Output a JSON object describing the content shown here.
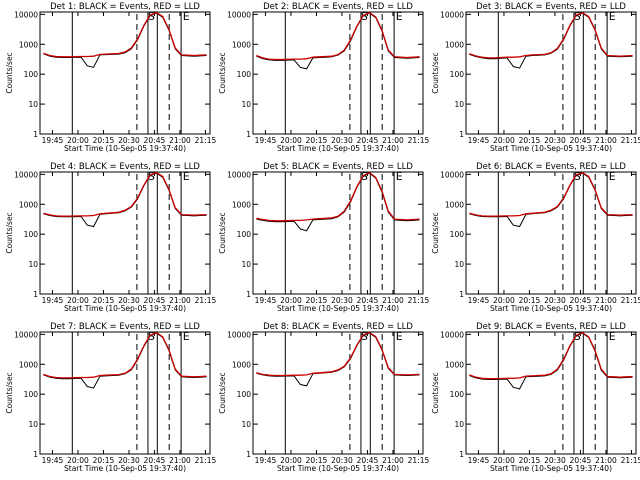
{
  "chart_data": [
    {
      "type": "line",
      "title": "Det 1: BLACK = Events, RED = LLD",
      "xlabel": "Start Time (10-Sep-05 19:37:40)",
      "ylabel": "Counts/sec",
      "x_ticks": [
        "19:45",
        "20:00",
        "20:15",
        "20:30",
        "20:45",
        "21:00",
        "21:15"
      ],
      "y_ticks": [
        "1",
        "10",
        "100",
        "1000",
        "10000"
      ],
      "ylim": [
        1,
        12000
      ],
      "annotations": [
        "S",
        "E"
      ],
      "series": [
        {
          "name": "Events",
          "color": "#000000",
          "values": [
            480,
            400,
            370,
            360,
            360,
            365,
            370,
            190,
            170,
            440,
            450,
            460,
            470,
            520,
            700,
            1400,
            4000,
            9000,
            11000,
            8000,
            3000,
            700,
            420,
            410,
            400,
            410,
            420
          ]
        },
        {
          "name": "LLD",
          "color": "#cc0000",
          "values": [
            500,
            420,
            390,
            380,
            380,
            385,
            390,
            390,
            400,
            460,
            470,
            480,
            490,
            550,
            750,
            1500,
            4200,
            9500,
            11500,
            8500,
            3200,
            750,
            440,
            430,
            420,
            430,
            440
          ]
        }
      ]
    },
    {
      "type": "line",
      "title": "Det 2: BLACK = Events, RED = LLD",
      "xlabel": "Start Time (10-Sep-05 19:37:40)",
      "ylabel": "Counts/sec",
      "x_ticks": [
        "19:45",
        "20:00",
        "20:15",
        "20:30",
        "20:45",
        "21:00",
        "21:15"
      ],
      "y_ticks": [
        "1",
        "10",
        "100",
        "1000",
        "10000"
      ],
      "ylim": [
        1,
        12000
      ],
      "annotations": [
        "S",
        "E"
      ],
      "series": [
        {
          "name": "Events",
          "color": "#000000",
          "values": [
            400,
            330,
            300,
            290,
            290,
            295,
            300,
            170,
            150,
            350,
            360,
            370,
            380,
            430,
            600,
            1300,
            3800,
            8800,
            11000,
            7800,
            2800,
            600,
            360,
            350,
            340,
            350,
            360
          ]
        },
        {
          "name": "LLD",
          "color": "#cc0000",
          "values": [
            420,
            350,
            320,
            310,
            310,
            315,
            320,
            320,
            330,
            370,
            380,
            390,
            400,
            450,
            640,
            1400,
            4000,
            9200,
            11500,
            8200,
            3000,
            650,
            380,
            370,
            360,
            370,
            380
          ]
        }
      ]
    },
    {
      "type": "line",
      "title": "Det 3: BLACK = Events, RED = LLD",
      "xlabel": "Start Time (10-Sep-05 19:37:40)",
      "ylabel": "Counts/sec",
      "x_ticks": [
        "19:45",
        "20:00",
        "20:15",
        "20:30",
        "20:45",
        "21:00",
        "21:15"
      ],
      "y_ticks": [
        "1",
        "10",
        "100",
        "1000",
        "10000"
      ],
      "ylim": [
        1,
        12000
      ],
      "annotations": [
        "S",
        "E"
      ],
      "series": [
        {
          "name": "Events",
          "color": "#000000",
          "values": [
            460,
            390,
            350,
            330,
            330,
            340,
            350,
            180,
            160,
            400,
            420,
            430,
            440,
            500,
            680,
            1400,
            4000,
            9000,
            11000,
            8000,
            3000,
            700,
            400,
            390,
            380,
            390,
            400
          ]
        },
        {
          "name": "LLD",
          "color": "#cc0000",
          "values": [
            480,
            410,
            370,
            350,
            350,
            360,
            370,
            370,
            380,
            420,
            440,
            450,
            460,
            520,
            720,
            1500,
            4200,
            9400,
            11500,
            8400,
            3200,
            750,
            420,
            410,
            400,
            410,
            420
          ]
        }
      ]
    },
    {
      "type": "line",
      "title": "Det 4: BLACK = Events, RED = LLD",
      "xlabel": "Start Time (10-Sep-05 19:37:40)",
      "ylabel": "Counts/sec",
      "x_ticks": [
        "19:45",
        "20:00",
        "20:15",
        "20:30",
        "20:45",
        "21:00",
        "21:15"
      ],
      "y_ticks": [
        "1",
        "10",
        "100",
        "1000",
        "10000"
      ],
      "ylim": [
        1,
        12000
      ],
      "annotations": [
        "S",
        "E"
      ],
      "series": [
        {
          "name": "Events",
          "color": "#000000",
          "values": [
            480,
            420,
            390,
            380,
            380,
            385,
            390,
            200,
            180,
            460,
            480,
            500,
            520,
            600,
            800,
            1500,
            4100,
            9200,
            11000,
            8000,
            3000,
            720,
            430,
            420,
            410,
            420,
            430
          ]
        },
        {
          "name": "LLD",
          "color": "#cc0000",
          "values": [
            500,
            440,
            410,
            400,
            400,
            405,
            410,
            410,
            420,
            480,
            500,
            520,
            540,
            630,
            840,
            1600,
            4300,
            9600,
            11500,
            8500,
            3200,
            770,
            450,
            440,
            430,
            440,
            450
          ]
        }
      ]
    },
    {
      "type": "line",
      "title": "Det 5: BLACK = Events, RED = LLD",
      "xlabel": "Start Time (10-Sep-05 19:37:40)",
      "ylabel": "Counts/sec",
      "x_ticks": [
        "19:45",
        "20:00",
        "20:15",
        "20:30",
        "20:45",
        "21:00",
        "21:15"
      ],
      "y_ticks": [
        "1",
        "10",
        "100",
        "1000",
        "10000"
      ],
      "ylim": [
        1,
        12000
      ],
      "annotations": [
        "S",
        "E"
      ],
      "series": [
        {
          "name": "Events",
          "color": "#000000",
          "values": [
            320,
            290,
            270,
            260,
            260,
            265,
            270,
            150,
            130,
            300,
            310,
            320,
            330,
            380,
            550,
            1200,
            3600,
            8500,
            11000,
            7500,
            2600,
            550,
            300,
            290,
            280,
            290,
            300
          ]
        },
        {
          "name": "LLD",
          "color": "#cc0000",
          "values": [
            340,
            310,
            290,
            280,
            280,
            285,
            290,
            290,
            300,
            320,
            330,
            340,
            350,
            400,
            590,
            1300,
            3800,
            9000,
            11500,
            7900,
            2800,
            600,
            320,
            310,
            300,
            310,
            320
          ]
        }
      ]
    },
    {
      "type": "line",
      "title": "Det 6: BLACK = Events, RED = LLD",
      "xlabel": "Start Time (10-Sep-05 19:37:40)",
      "ylabel": "Counts/sec",
      "x_ticks": [
        "19:45",
        "20:00",
        "20:15",
        "20:30",
        "20:45",
        "21:00",
        "21:15"
      ],
      "y_ticks": [
        "1",
        "10",
        "100",
        "1000",
        "10000"
      ],
      "ylim": [
        1,
        12000
      ],
      "annotations": [
        "S",
        "E"
      ],
      "series": [
        {
          "name": "Events",
          "color": "#000000",
          "values": [
            480,
            420,
            390,
            380,
            380,
            385,
            390,
            200,
            180,
            460,
            480,
            500,
            520,
            600,
            800,
            1500,
            4100,
            9200,
            11000,
            8000,
            3000,
            720,
            430,
            420,
            410,
            420,
            430
          ]
        },
        {
          "name": "LLD",
          "color": "#cc0000",
          "values": [
            500,
            440,
            410,
            400,
            400,
            405,
            410,
            410,
            420,
            480,
            500,
            520,
            540,
            630,
            840,
            1600,
            4300,
            9600,
            11500,
            8500,
            3200,
            770,
            450,
            440,
            430,
            440,
            450
          ]
        }
      ]
    },
    {
      "type": "line",
      "title": "Det 7: BLACK = Events, RED = LLD",
      "xlabel": "Start Time (10-Sep-05 19:37:40)",
      "ylabel": "Counts/sec",
      "x_ticks": [
        "19:45",
        "20:00",
        "20:15",
        "20:30",
        "20:45",
        "21:00",
        "21:15"
      ],
      "y_ticks": [
        "1",
        "10",
        "100",
        "1000",
        "10000"
      ],
      "ylim": [
        1,
        12000
      ],
      "annotations": [
        "S",
        "E"
      ],
      "series": [
        {
          "name": "Events",
          "color": "#000000",
          "values": [
            440,
            370,
            340,
            330,
            330,
            335,
            340,
            180,
            160,
            400,
            410,
            420,
            430,
            480,
            650,
            1400,
            3900,
            8900,
            11000,
            7900,
            2900,
            650,
            380,
            370,
            360,
            370,
            380
          ]
        },
        {
          "name": "LLD",
          "color": "#cc0000",
          "values": [
            460,
            390,
            360,
            350,
            350,
            355,
            360,
            360,
            370,
            420,
            430,
            440,
            450,
            500,
            690,
            1500,
            4100,
            9300,
            11500,
            8300,
            3100,
            700,
            400,
            390,
            380,
            390,
            400
          ]
        }
      ]
    },
    {
      "type": "line",
      "title": "Det 8: BLACK = Events, RED = LLD",
      "xlabel": "Start Time (10-Sep-05 19:37:40)",
      "ylabel": "Counts/sec",
      "x_ticks": [
        "19:45",
        "20:00",
        "20:15",
        "20:30",
        "20:45",
        "21:00",
        "21:15"
      ],
      "y_ticks": [
        "1",
        "10",
        "100",
        "1000",
        "10000"
      ],
      "ylim": [
        1,
        12000
      ],
      "annotations": [
        "S",
        "E"
      ],
      "series": [
        {
          "name": "Events",
          "color": "#000000",
          "values": [
            500,
            440,
            410,
            400,
            400,
            405,
            410,
            210,
            190,
            480,
            500,
            520,
            540,
            620,
            820,
            1550,
            4100,
            9100,
            11000,
            8000,
            3000,
            730,
            440,
            430,
            420,
            430,
            440
          ]
        },
        {
          "name": "LLD",
          "color": "#cc0000",
          "values": [
            520,
            460,
            430,
            420,
            420,
            425,
            430,
            430,
            440,
            500,
            520,
            540,
            560,
            650,
            860,
            1650,
            4300,
            9500,
            11500,
            8400,
            3200,
            780,
            460,
            450,
            440,
            450,
            460
          ]
        }
      ]
    },
    {
      "type": "line",
      "title": "Det 9: BLACK = Events, RED = LLD",
      "xlabel": "Start Time (10-Sep-05 19:37:40)",
      "ylabel": "Counts/sec",
      "x_ticks": [
        "19:45",
        "20:00",
        "20:15",
        "20:30",
        "20:45",
        "21:00",
        "21:15"
      ],
      "y_ticks": [
        "1",
        "10",
        "100",
        "1000",
        "10000"
      ],
      "ylim": [
        1,
        12000
      ],
      "annotations": [
        "S",
        "E"
      ],
      "series": [
        {
          "name": "Events",
          "color": "#000000",
          "values": [
            420,
            350,
            320,
            310,
            310,
            315,
            320,
            170,
            150,
            380,
            390,
            400,
            410,
            460,
            640,
            1350,
            3900,
            8800,
            11000,
            7800,
            2800,
            640,
            370,
            360,
            350,
            360,
            370
          ]
        },
        {
          "name": "LLD",
          "color": "#cc0000",
          "values": [
            440,
            370,
            340,
            330,
            330,
            335,
            340,
            340,
            350,
            400,
            410,
            420,
            430,
            480,
            680,
            1450,
            4100,
            9200,
            11500,
            8200,
            3000,
            690,
            390,
            380,
            370,
            380,
            390
          ]
        }
      ]
    }
  ]
}
